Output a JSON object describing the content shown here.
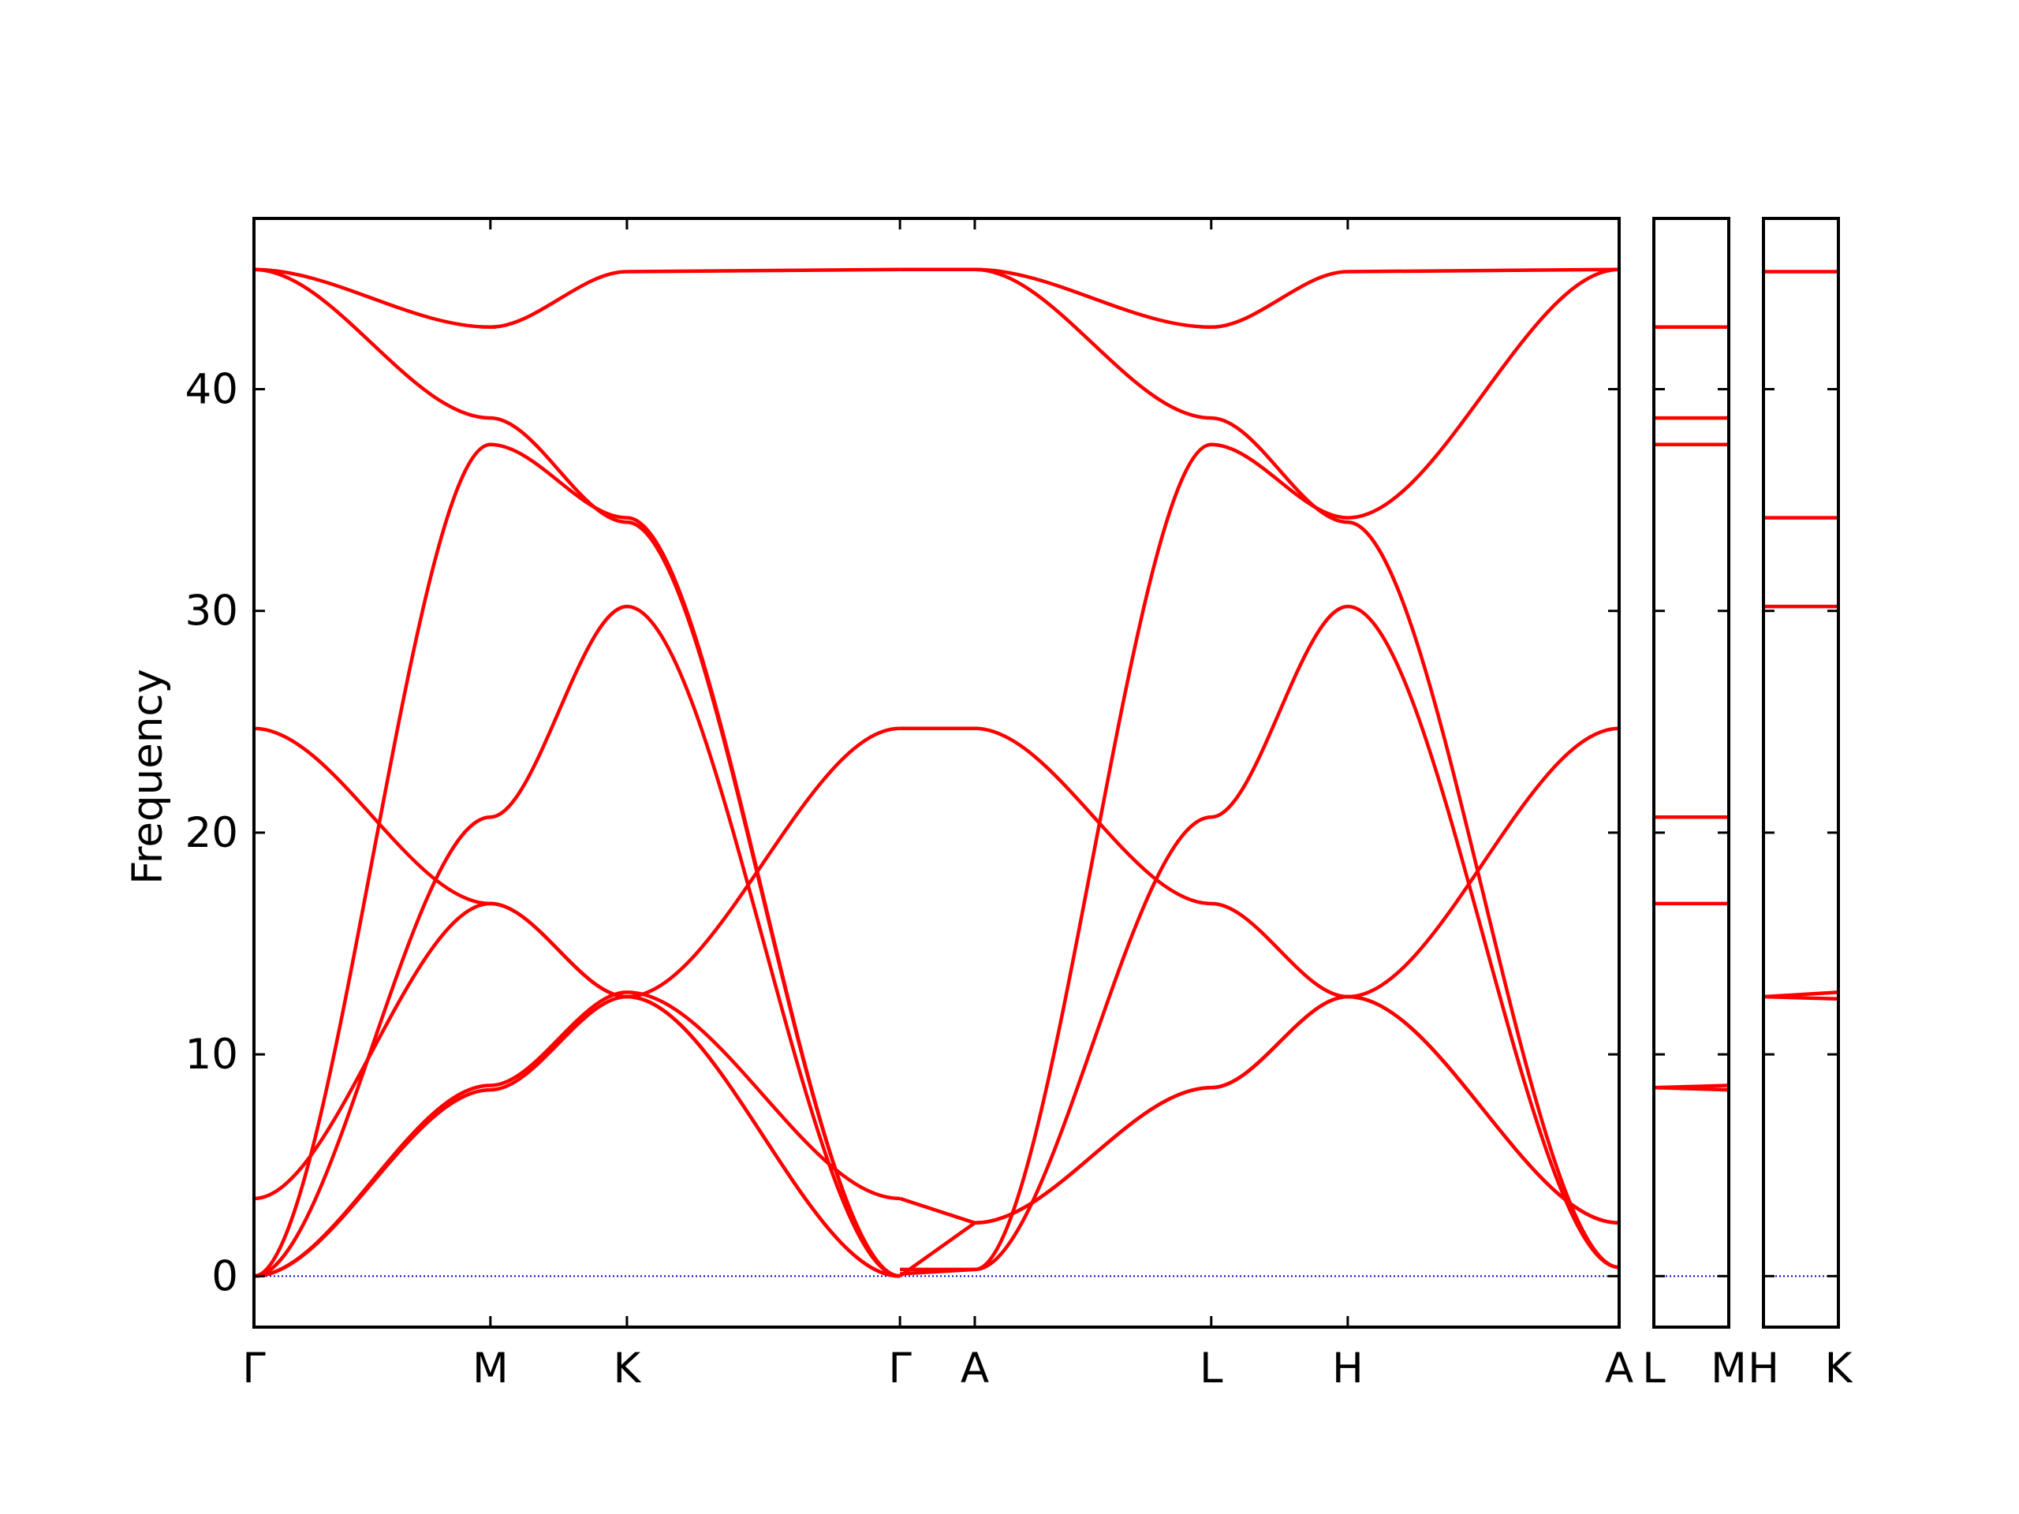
{
  "chart_data": {
    "type": "line",
    "ylabel": "Frequency",
    "ylim": [
      -2.3,
      47.7
    ],
    "yticks": [
      0,
      10,
      20,
      30,
      40
    ],
    "line_color": "#ff0000",
    "zero_line_color": "#0000cc",
    "grid": false,
    "legend": "none",
    "panels": [
      {
        "id": "main",
        "x_range": [
          0,
          5.0
        ],
        "ticks": [
          {
            "x": 0,
            "label": "Γ"
          },
          {
            "x": 0.866,
            "label": "M"
          },
          {
            "x": 1.366,
            "label": "K"
          },
          {
            "x": 2.366,
            "label": "Γ"
          },
          {
            "x": 2.64,
            "label": "A"
          },
          {
            "x": 3.506,
            "label": "L"
          },
          {
            "x": 4.006,
            "label": "H"
          },
          {
            "x": 5.0,
            "label": "A"
          }
        ],
        "series": [
          {
            "x": [
              0,
              0.866,
              1.366,
              2.366
            ],
            "values": [
              45.4,
              42.8,
              45.3,
              45.4
            ]
          },
          {
            "x": [
              2.366,
              2.64
            ],
            "values": [
              45.4,
              45.4
            ]
          },
          {
            "x": [
              2.64,
              3.506,
              4.006,
              5.0
            ],
            "values": [
              45.4,
              42.8,
              45.3,
              45.4
            ]
          },
          {
            "x": [
              0,
              0.866,
              1.366,
              2.366
            ],
            "values": [
              45.4,
              38.7,
              34.0,
              0.0
            ]
          },
          {
            "x": [
              0,
              0.866,
              1.366,
              2.366
            ],
            "values": [
              0.0,
              37.5,
              34.2,
              0.0
            ]
          },
          {
            "x": [
              0,
              0.866,
              1.366,
              2.366
            ],
            "values": [
              0.0,
              20.7,
              30.2,
              0.0
            ]
          },
          {
            "x": [
              0,
              0.866,
              1.366,
              2.366
            ],
            "values": [
              24.7,
              16.8,
              12.6,
              24.7
            ]
          },
          {
            "x": [
              0,
              0.866,
              1.366,
              2.366
            ],
            "values": [
              0.0,
              8.6,
              12.8,
              3.5
            ]
          },
          {
            "x": [
              0,
              0.866,
              1.366,
              2.366
            ],
            "values": [
              0.0,
              8.4,
              12.6,
              0.0
            ]
          },
          {
            "x": [
              0,
              0.866,
              1.366,
              2.366
            ],
            "values": [
              3.5,
              16.8,
              12.6,
              0.0
            ]
          },
          {
            "x": [
              2.366,
              2.64
            ],
            "values": [
              24.7,
              24.7
            ]
          },
          {
            "x": [
              2.366,
              2.64
            ],
            "values": [
              3.5,
              2.4
            ]
          },
          {
            "x": [
              2.366,
              2.64
            ],
            "values": [
              0.0,
              2.4
            ]
          },
          {
            "x": [
              2.366,
              2.64
            ],
            "values": [
              0.3,
              0.3
            ]
          },
          {
            "x": [
              2.366,
              2.64
            ],
            "values": [
              0.1,
              0.3
            ]
          },
          {
            "x": [
              2.64,
              3.506,
              4.006,
              5.0
            ],
            "values": [
              45.4,
              38.7,
              34.0,
              0.4
            ]
          },
          {
            "x": [
              2.64,
              3.506,
              4.006,
              5.0
            ],
            "values": [
              0.3,
              37.5,
              34.2,
              45.4
            ]
          },
          {
            "x": [
              2.64,
              3.506,
              4.006,
              5.0
            ],
            "values": [
              0.3,
              20.7,
              30.2,
              0.4
            ]
          },
          {
            "x": [
              2.64,
              3.506,
              4.006,
              5.0
            ],
            "values": [
              24.7,
              16.8,
              12.6,
              2.4
            ]
          },
          {
            "x": [
              2.64,
              3.506,
              4.006,
              5.0
            ],
            "values": [
              2.4,
              8.5,
              12.6,
              24.7
            ]
          },
          {
            "x": [
              2.64,
              3.506,
              4.006,
              5.0
            ],
            "values": [
              2.4,
              8.5,
              12.6,
              2.4
            ]
          }
        ]
      },
      {
        "id": "LM",
        "x_range": [
          0,
          1
        ],
        "ticks": [
          {
            "x": 0,
            "label": "L"
          },
          {
            "x": 1,
            "label": "M"
          }
        ],
        "series": [
          {
            "x": [
              0,
              1
            ],
            "values": [
              42.8,
              42.8
            ]
          },
          {
            "x": [
              0,
              1
            ],
            "values": [
              38.7,
              38.7
            ]
          },
          {
            "x": [
              0,
              1
            ],
            "values": [
              37.5,
              37.5
            ]
          },
          {
            "x": [
              0,
              1
            ],
            "values": [
              20.7,
              20.7
            ]
          },
          {
            "x": [
              0,
              1
            ],
            "values": [
              16.8,
              16.8
            ]
          },
          {
            "x": [
              0,
              1
            ],
            "values": [
              8.5,
              8.6
            ]
          },
          {
            "x": [
              0,
              1
            ],
            "values": [
              8.5,
              8.4
            ]
          }
        ]
      },
      {
        "id": "HK",
        "x_range": [
          0,
          1
        ],
        "ticks": [
          {
            "x": 0,
            "label": "H"
          },
          {
            "x": 1,
            "label": "K"
          }
        ],
        "series": [
          {
            "x": [
              0,
              1
            ],
            "values": [
              45.3,
              45.3
            ]
          },
          {
            "x": [
              0,
              1
            ],
            "values": [
              34.2,
              34.2
            ]
          },
          {
            "x": [
              0,
              1
            ],
            "values": [
              30.2,
              30.2
            ]
          },
          {
            "x": [
              0,
              1
            ],
            "values": [
              12.6,
              12.8
            ]
          },
          {
            "x": [
              0,
              1
            ],
            "values": [
              12.6,
              12.5
            ]
          }
        ]
      }
    ]
  }
}
